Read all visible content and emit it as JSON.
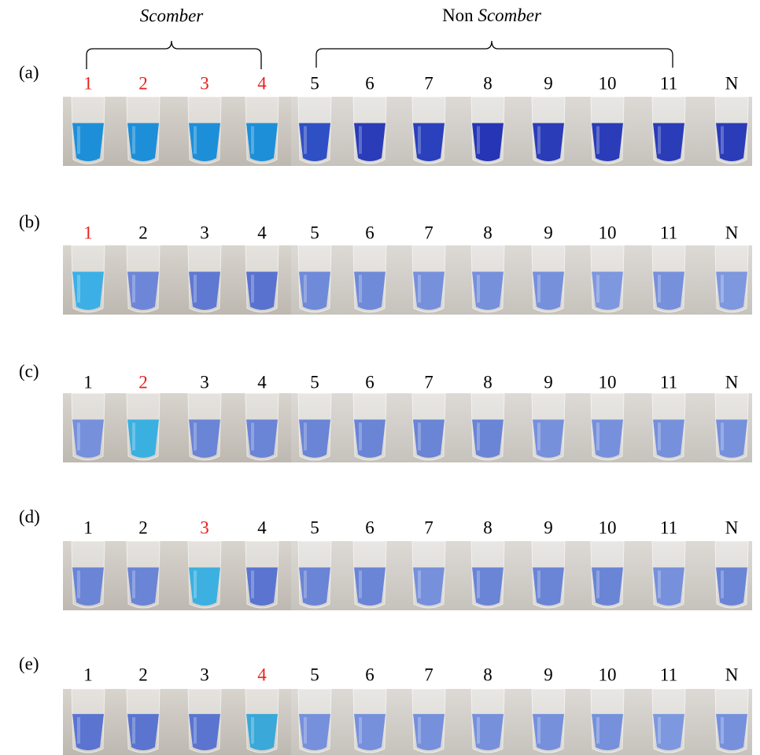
{
  "header": {
    "left_group": "Scomber",
    "right_group": [
      "Non",
      "Scomber"
    ]
  },
  "rows": [
    {
      "label": "(a)",
      "tubes": [
        {
          "label": "1",
          "label_color": "#e8201c",
          "liquid": "#1d8fd8"
        },
        {
          "label": "2",
          "label_color": "#e8201c",
          "liquid": "#1d8fd8"
        },
        {
          "label": "3",
          "label_color": "#e8201c",
          "liquid": "#1d8fd8"
        },
        {
          "label": "4",
          "label_color": "#e8201c",
          "liquid": "#1d8fd8"
        },
        {
          "label": "5",
          "label_color": "#000000",
          "liquid": "#2f4fc4"
        },
        {
          "label": "6",
          "label_color": "#000000",
          "liquid": "#2a3cb8"
        },
        {
          "label": "7",
          "label_color": "#000000",
          "liquid": "#2a40bc"
        },
        {
          "label": "8",
          "label_color": "#000000",
          "liquid": "#2535b5"
        },
        {
          "label": "9",
          "label_color": "#000000",
          "liquid": "#2a3cb8"
        },
        {
          "label": "10",
          "label_color": "#000000",
          "liquid": "#2a3cb8"
        },
        {
          "label": "11",
          "label_color": "#000000",
          "liquid": "#2a3cb8"
        },
        {
          "label": "N",
          "label_color": "#000000",
          "liquid": "#2a3cb8"
        }
      ]
    },
    {
      "label": "(b)",
      "tubes": [
        {
          "label": "1",
          "label_color": "#e8201c",
          "liquid": "#3cb0e6"
        },
        {
          "label": "2",
          "label_color": "#000000",
          "liquid": "#6e86d8"
        },
        {
          "label": "3",
          "label_color": "#000000",
          "liquid": "#5f78d2"
        },
        {
          "label": "4",
          "label_color": "#000000",
          "liquid": "#5a72cf"
        },
        {
          "label": "5",
          "label_color": "#000000",
          "liquid": "#6f8ad9"
        },
        {
          "label": "6",
          "label_color": "#000000",
          "liquid": "#6f8ad9"
        },
        {
          "label": "7",
          "label_color": "#000000",
          "liquid": "#7690dc"
        },
        {
          "label": "8",
          "label_color": "#000000",
          "liquid": "#7690dc"
        },
        {
          "label": "9",
          "label_color": "#000000",
          "liquid": "#7690dc"
        },
        {
          "label": "10",
          "label_color": "#000000",
          "liquid": "#7e98df"
        },
        {
          "label": "11",
          "label_color": "#000000",
          "liquid": "#7690dc"
        },
        {
          "label": "N",
          "label_color": "#000000",
          "liquid": "#7e98df"
        }
      ]
    },
    {
      "label": "(c)",
      "tubes": [
        {
          "label": "1",
          "label_color": "#000000",
          "liquid": "#7690dc"
        },
        {
          "label": "2",
          "label_color": "#e8201c",
          "liquid": "#3ab0e0"
        },
        {
          "label": "3",
          "label_color": "#000000",
          "liquid": "#6a84d6"
        },
        {
          "label": "4",
          "label_color": "#000000",
          "liquid": "#6a84d6"
        },
        {
          "label": "5",
          "label_color": "#000000",
          "liquid": "#6a84d6"
        },
        {
          "label": "6",
          "label_color": "#000000",
          "liquid": "#6a84d6"
        },
        {
          "label": "7",
          "label_color": "#000000",
          "liquid": "#6a84d6"
        },
        {
          "label": "8",
          "label_color": "#000000",
          "liquid": "#6a84d6"
        },
        {
          "label": "9",
          "label_color": "#000000",
          "liquid": "#7690dc"
        },
        {
          "label": "10",
          "label_color": "#000000",
          "liquid": "#7690dc"
        },
        {
          "label": "11",
          "label_color": "#000000",
          "liquid": "#7690dc"
        },
        {
          "label": "N",
          "label_color": "#000000",
          "liquid": "#7690dc"
        }
      ]
    },
    {
      "label": "(d)",
      "tubes": [
        {
          "label": "1",
          "label_color": "#000000",
          "liquid": "#6a84d6"
        },
        {
          "label": "2",
          "label_color": "#000000",
          "liquid": "#6a84d6"
        },
        {
          "label": "3",
          "label_color": "#e8201c",
          "liquid": "#3cb0e0"
        },
        {
          "label": "4",
          "label_color": "#000000",
          "liquid": "#5a74d0"
        },
        {
          "label": "5",
          "label_color": "#000000",
          "liquid": "#6a84d6"
        },
        {
          "label": "6",
          "label_color": "#000000",
          "liquid": "#6a84d6"
        },
        {
          "label": "7",
          "label_color": "#000000",
          "liquid": "#7690dc"
        },
        {
          "label": "8",
          "label_color": "#000000",
          "liquid": "#6a84d6"
        },
        {
          "label": "9",
          "label_color": "#000000",
          "liquid": "#6a84d6"
        },
        {
          "label": "10",
          "label_color": "#000000",
          "liquid": "#6a84d6"
        },
        {
          "label": "11",
          "label_color": "#000000",
          "liquid": "#7690dc"
        },
        {
          "label": "N",
          "label_color": "#000000",
          "liquid": "#6a84d6"
        }
      ]
    },
    {
      "label": "(e)",
      "tubes": [
        {
          "label": "1",
          "label_color": "#000000",
          "liquid": "#5a74d0"
        },
        {
          "label": "2",
          "label_color": "#000000",
          "liquid": "#5a74d0"
        },
        {
          "label": "3",
          "label_color": "#000000",
          "liquid": "#5a74d0"
        },
        {
          "label": "4",
          "label_color": "#e8201c",
          "liquid": "#3aa8d8"
        },
        {
          "label": "5",
          "label_color": "#000000",
          "liquid": "#7690dc"
        },
        {
          "label": "6",
          "label_color": "#000000",
          "liquid": "#7690dc"
        },
        {
          "label": "7",
          "label_color": "#000000",
          "liquid": "#7690dc"
        },
        {
          "label": "8",
          "label_color": "#000000",
          "liquid": "#7690dc"
        },
        {
          "label": "9",
          "label_color": "#000000",
          "liquid": "#7690dc"
        },
        {
          "label": "10",
          "label_color": "#000000",
          "liquid": "#7690dc"
        },
        {
          "label": "11",
          "label_color": "#000000",
          "liquid": "#7e98df"
        },
        {
          "label": "N",
          "label_color": "#000000",
          "liquid": "#7690dc"
        }
      ]
    }
  ]
}
